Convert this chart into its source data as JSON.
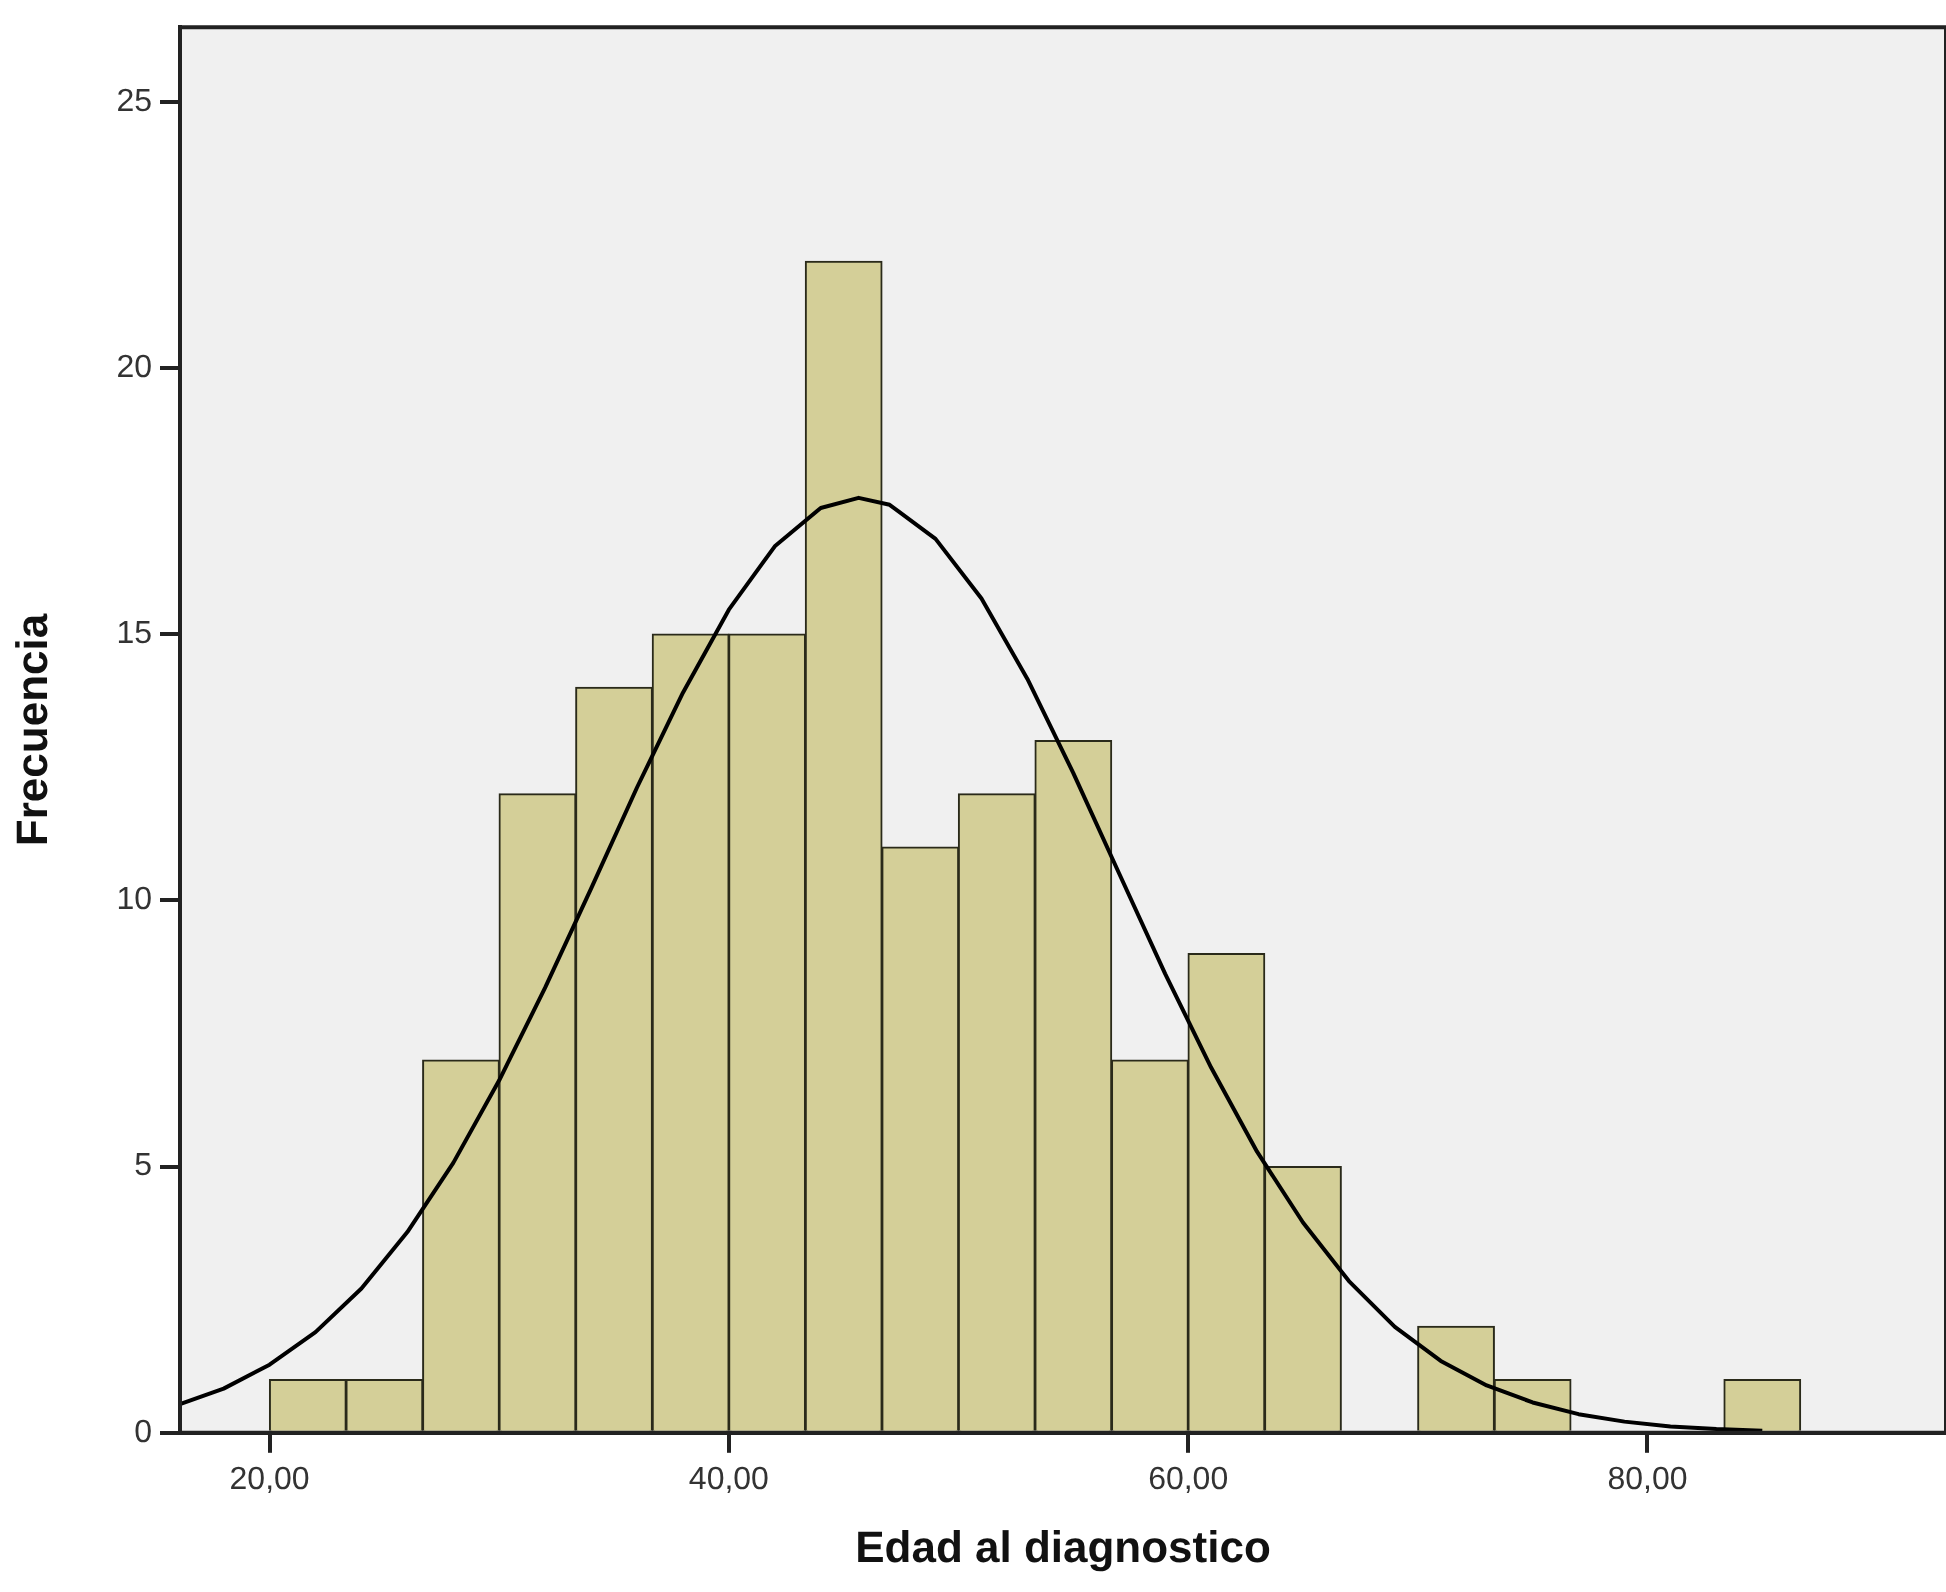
{
  "chart_data": {
    "type": "histogram",
    "xlabel": "Edad al diagnostico",
    "ylabel": "Frecuencia",
    "bins": [
      20,
      23.33,
      26.67,
      30,
      33.33,
      36.67,
      40,
      43.33,
      46.67,
      50,
      53.33,
      56.67,
      60,
      63.33,
      66.67,
      70,
      73.33,
      76.67,
      80,
      83.33,
      86.67
    ],
    "values": [
      1,
      1,
      7,
      12,
      14,
      15,
      15,
      22,
      11,
      12,
      13,
      7,
      9,
      5,
      0,
      2,
      1,
      0,
      0,
      1
    ],
    "color": "#d4cf98",
    "xlim": [
      16.1,
      93
    ],
    "xticks": [
      {
        "value": 20,
        "label": "20,00"
      },
      {
        "value": 40,
        "label": "40,00"
      },
      {
        "value": 60,
        "label": "60,00"
      },
      {
        "value": 80,
        "label": "80,00"
      }
    ],
    "ylim": [
      0,
      26.4
    ],
    "yticks": [
      0,
      5,
      10,
      15,
      20,
      25
    ],
    "grid": false,
    "legend": false,
    "marker": "none",
    "series": [
      {
        "type": "line",
        "color": "#000000",
        "x": [
          16.1,
          18,
          20,
          22,
          24,
          26,
          28,
          30,
          32,
          34,
          36,
          38,
          40,
          42,
          44,
          45.65,
          47,
          49,
          51,
          53,
          55,
          57,
          59,
          61,
          63,
          65,
          67,
          69,
          71,
          73,
          75,
          77,
          79,
          81,
          83,
          85
        ],
        "values": [
          0.54,
          0.83,
          1.28,
          1.89,
          2.71,
          3.77,
          5.07,
          6.62,
          8.36,
          10.22,
          12.12,
          13.9,
          15.46,
          16.65,
          17.37,
          17.56,
          17.43,
          16.79,
          15.67,
          14.16,
          12.39,
          10.5,
          8.62,
          6.86,
          5.28,
          3.95,
          2.85,
          1.99,
          1.35,
          0.89,
          0.57,
          0.35,
          0.21,
          0.12,
          0.07,
          0.04
        ]
      }
    ]
  }
}
